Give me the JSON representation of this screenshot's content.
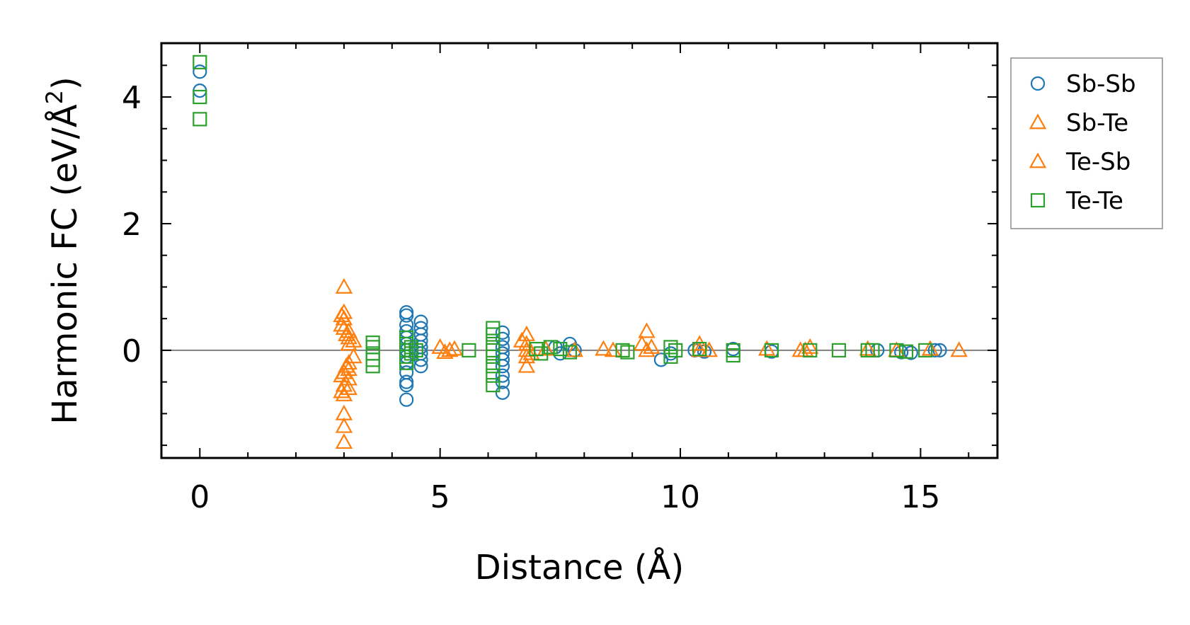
{
  "chart_data": {
    "type": "scatter",
    "title": "",
    "xlabel": "Distance (Å)",
    "ylabel_main": "Harmonic FC (eV/Å",
    "ylabel_sup": "2",
    "ylabel_close": ")",
    "xlim": [
      -0.8,
      16.6
    ],
    "ylim": [
      -1.7,
      4.85
    ],
    "xticks": [
      0,
      5,
      10,
      15
    ],
    "xtick_labels": [
      "0",
      "5",
      "10",
      "15"
    ],
    "yticks": [
      0,
      2,
      4
    ],
    "ytick_labels": [
      "0",
      "2",
      "4"
    ],
    "x_minor_step": 1,
    "y_minor_step": 0.5,
    "reference_line_y": 0,
    "legend_position": "outside-right",
    "series": [
      {
        "name": "Sb-Sb",
        "marker": "circle",
        "color": "#1f77b4",
        "points": [
          [
            0.0,
            4.4
          ],
          [
            0.0,
            4.1
          ],
          [
            4.3,
            0.6
          ],
          [
            4.3,
            0.55
          ],
          [
            4.3,
            0.4
          ],
          [
            4.3,
            0.3
          ],
          [
            4.3,
            0.2
          ],
          [
            4.3,
            0.1
          ],
          [
            4.3,
            0.0
          ],
          [
            4.3,
            -0.1
          ],
          [
            4.3,
            -0.2
          ],
          [
            4.3,
            -0.35
          ],
          [
            4.3,
            -0.5
          ],
          [
            4.3,
            -0.55
          ],
          [
            4.3,
            -0.78
          ],
          [
            4.6,
            0.45
          ],
          [
            4.6,
            0.35
          ],
          [
            4.6,
            0.25
          ],
          [
            4.6,
            0.15
          ],
          [
            4.6,
            0.05
          ],
          [
            4.6,
            -0.05
          ],
          [
            4.6,
            -0.15
          ],
          [
            4.6,
            -0.25
          ],
          [
            6.3,
            0.28
          ],
          [
            6.3,
            0.18
          ],
          [
            6.3,
            0.05
          ],
          [
            6.3,
            -0.05
          ],
          [
            6.3,
            -0.15
          ],
          [
            6.3,
            -0.25
          ],
          [
            6.3,
            -0.4
          ],
          [
            6.3,
            -0.5
          ],
          [
            6.3,
            -0.67
          ],
          [
            7.4,
            0.05
          ],
          [
            7.5,
            -0.05
          ],
          [
            7.7,
            0.1
          ],
          [
            7.8,
            0.0
          ],
          [
            9.6,
            -0.15
          ],
          [
            9.8,
            -0.05
          ],
          [
            10.3,
            0.0
          ],
          [
            10.5,
            -0.02
          ],
          [
            11.1,
            0.02
          ],
          [
            11.9,
            -0.02
          ],
          [
            14.1,
            0.0
          ],
          [
            14.6,
            -0.03
          ],
          [
            14.8,
            -0.04
          ],
          [
            15.3,
            0.0
          ],
          [
            15.4,
            0.0
          ]
        ]
      },
      {
        "name": "Sb-Te",
        "marker": "triangle",
        "color": "#ff7f0e",
        "points": [
          [
            3.0,
            1.0
          ],
          [
            3.0,
            0.6
          ],
          [
            3.0,
            0.5
          ],
          [
            3.0,
            0.35
          ],
          [
            3.0,
            -0.35
          ],
          [
            3.0,
            -0.55
          ],
          [
            3.0,
            -0.7
          ],
          [
            3.0,
            -1.0
          ],
          [
            3.0,
            -1.2
          ],
          [
            3.0,
            -1.45
          ],
          [
            3.1,
            0.3
          ],
          [
            3.1,
            0.2
          ],
          [
            3.1,
            0.1
          ],
          [
            3.1,
            -0.2
          ],
          [
            3.1,
            -0.3
          ],
          [
            3.1,
            -0.45
          ],
          [
            3.1,
            -0.6
          ],
          [
            3.2,
            0.15
          ],
          [
            3.2,
            -0.1
          ],
          [
            5.0,
            0.05
          ],
          [
            5.1,
            -0.03
          ],
          [
            5.3,
            0.02
          ],
          [
            6.8,
            0.25
          ],
          [
            6.8,
            0.1
          ],
          [
            6.8,
            0.0
          ],
          [
            6.8,
            -0.1
          ],
          [
            6.8,
            -0.25
          ],
          [
            7.2,
            0.02
          ],
          [
            7.8,
            0.0
          ],
          [
            8.4,
            0.02
          ],
          [
            8.6,
            0.0
          ],
          [
            9.3,
            0.3
          ],
          [
            9.3,
            0.0
          ],
          [
            9.4,
            0.05
          ],
          [
            10.4,
            0.1
          ],
          [
            10.6,
            0.0
          ],
          [
            11.8,
            0.02
          ],
          [
            12.5,
            0.0
          ],
          [
            12.7,
            0.05
          ],
          [
            13.9,
            0.02
          ],
          [
            14.5,
            0.0
          ],
          [
            15.2,
            0.02
          ],
          [
            15.8,
            0.0
          ]
        ]
      },
      {
        "name": "Te-Sb",
        "marker": "triangle",
        "color": "#ff7f0e",
        "points": [
          [
            2.95,
            0.55
          ],
          [
            2.95,
            0.4
          ],
          [
            2.95,
            -0.4
          ],
          [
            2.95,
            -0.65
          ],
          [
            3.05,
            0.25
          ],
          [
            3.05,
            -0.25
          ],
          [
            5.2,
            0.0
          ],
          [
            6.7,
            0.15
          ],
          [
            6.9,
            -0.05
          ],
          [
            9.2,
            0.1
          ],
          [
            10.4,
            0.0
          ],
          [
            12.6,
            0.0
          ]
        ]
      },
      {
        "name": "Te-Te",
        "marker": "square",
        "color": "#2ca02c",
        "points": [
          [
            0.0,
            4.55
          ],
          [
            0.0,
            4.0
          ],
          [
            0.0,
            3.65
          ],
          [
            3.6,
            0.12
          ],
          [
            3.6,
            0.05
          ],
          [
            3.6,
            -0.05
          ],
          [
            3.6,
            -0.15
          ],
          [
            3.6,
            -0.25
          ],
          [
            4.3,
            0.2
          ],
          [
            4.3,
            0.1
          ],
          [
            4.3,
            0.0
          ],
          [
            4.3,
            -0.1
          ],
          [
            4.3,
            -0.2
          ],
          [
            4.4,
            0.05
          ],
          [
            4.4,
            -0.05
          ],
          [
            4.5,
            0.0
          ],
          [
            5.6,
            0.0
          ],
          [
            6.1,
            0.35
          ],
          [
            6.1,
            0.25
          ],
          [
            6.1,
            0.1
          ],
          [
            6.1,
            0.0
          ],
          [
            6.1,
            -0.1
          ],
          [
            6.1,
            -0.25
          ],
          [
            6.1,
            -0.4
          ],
          [
            6.1,
            -0.55
          ],
          [
            7.0,
            0.02
          ],
          [
            7.1,
            -0.05
          ],
          [
            7.3,
            0.05
          ],
          [
            7.5,
            0.02
          ],
          [
            7.7,
            -0.03
          ],
          [
            8.8,
            0.0
          ],
          [
            8.9,
            -0.03
          ],
          [
            9.8,
            0.05
          ],
          [
            9.8,
            -0.1
          ],
          [
            9.9,
            0.0
          ],
          [
            10.4,
            0.02
          ],
          [
            11.1,
            0.0
          ],
          [
            11.1,
            -0.08
          ],
          [
            11.9,
            0.0
          ],
          [
            12.7,
            0.0
          ],
          [
            13.3,
            0.0
          ],
          [
            13.9,
            0.0
          ],
          [
            14.0,
            0.0
          ],
          [
            14.5,
            0.0
          ],
          [
            14.7,
            -0.02
          ],
          [
            15.1,
            0.0
          ]
        ]
      }
    ]
  }
}
